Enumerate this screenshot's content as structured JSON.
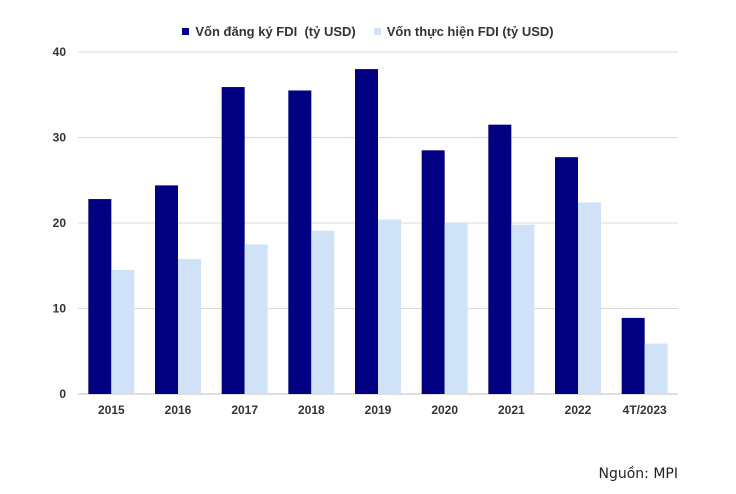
{
  "chart_data": {
    "type": "bar",
    "categories": [
      "2015",
      "2016",
      "2017",
      "2018",
      "2019",
      "2020",
      "2021",
      "2022",
      "4T/2023"
    ],
    "series": [
      {
        "name": "Vốn đăng ký FDI  (tỷ USD)",
        "color": "#000080",
        "values": [
          22.8,
          24.4,
          35.9,
          35.5,
          38.0,
          28.5,
          31.5,
          27.7,
          8.9
        ]
      },
      {
        "name": "Vốn thực hiện FDI (tỷ USD)",
        "color": "#cfe2f7",
        "values": [
          14.5,
          15.8,
          17.5,
          19.1,
          20.4,
          20.0,
          19.8,
          22.4,
          5.9
        ]
      }
    ],
    "ylim": [
      0,
      40
    ],
    "yticks": [
      0,
      10,
      20,
      30,
      40
    ],
    "grid": true,
    "legend": "top-center",
    "title": "",
    "xlabel": "",
    "ylabel": ""
  },
  "source": "Nguồn: MPI"
}
